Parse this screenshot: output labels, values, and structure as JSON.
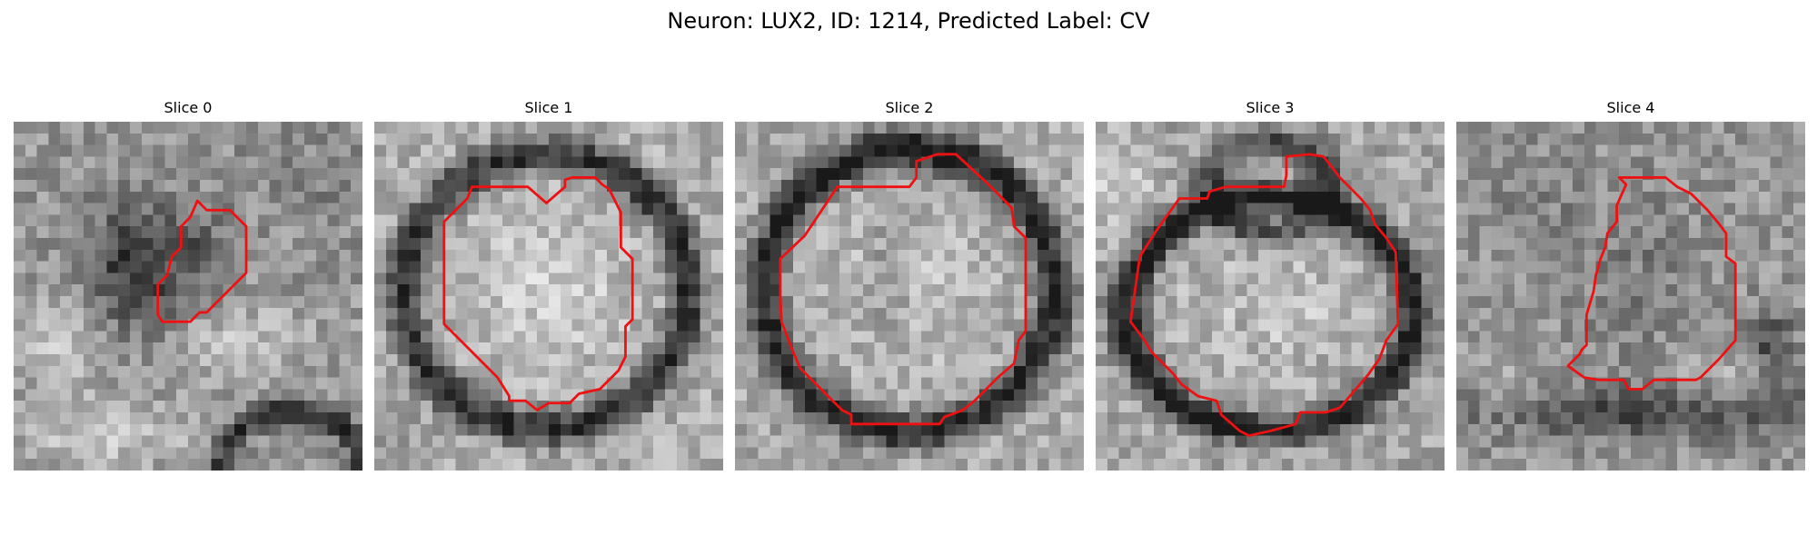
{
  "figure": {
    "title": "Neuron: LUX2, ID: 1214, Predicted Label: CV"
  },
  "colors": {
    "contour": "#ee1111",
    "background": "#ffffff"
  },
  "slices": [
    {
      "title": "Slice 0"
    },
    {
      "title": "Slice 1"
    },
    {
      "title": "Slice 2"
    },
    {
      "title": "Slice 3"
    },
    {
      "title": "Slice 4"
    }
  ]
}
